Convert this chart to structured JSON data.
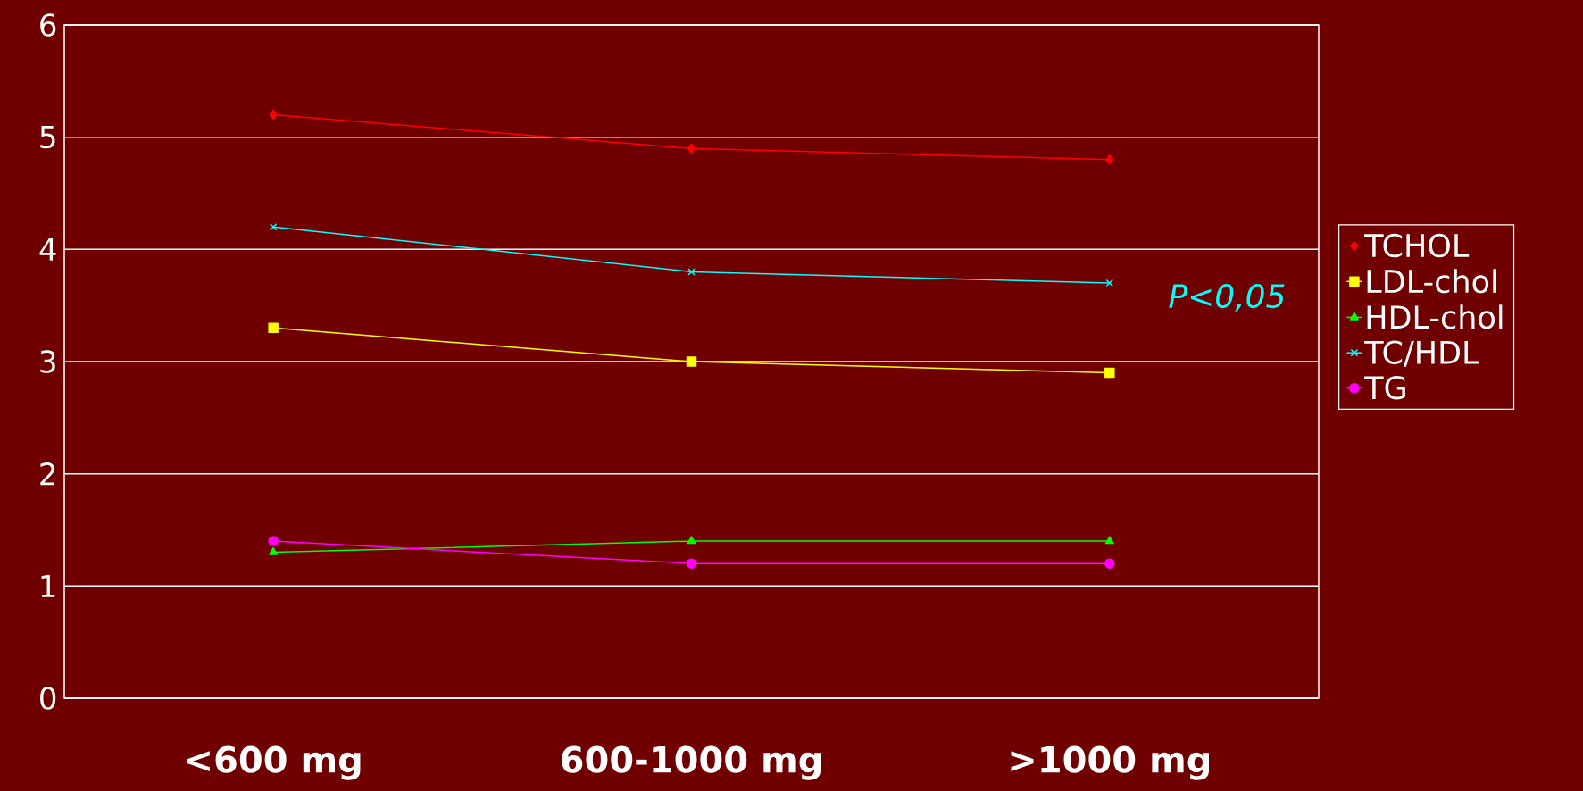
{
  "chart_data": {
    "type": "line",
    "categories": [
      "<600 mg",
      "600-1000 mg",
      ">1000 mg"
    ],
    "series": [
      {
        "name": "TCHOL",
        "color": "#ff0000",
        "marker": "diamond",
        "values": [
          5.2,
          4.9,
          4.8
        ]
      },
      {
        "name": "LDL-chol",
        "color": "#ffff00",
        "marker": "square",
        "values": [
          3.3,
          3.0,
          2.9
        ]
      },
      {
        "name": "HDL-chol",
        "color": "#00ff00",
        "marker": "triangle",
        "values": [
          1.3,
          1.4,
          1.4
        ]
      },
      {
        "name": "TC/HDL",
        "color": "#00ffff",
        "marker": "cross",
        "values": [
          4.2,
          3.8,
          3.7
        ]
      },
      {
        "name": "TG",
        "color": "#ff00ff",
        "marker": "circle",
        "values": [
          1.4,
          1.2,
          1.2
        ]
      }
    ],
    "ylim": [
      0,
      6
    ],
    "yticks": [
      0,
      1,
      2,
      3,
      4,
      5,
      6
    ],
    "grid": "y",
    "legend": "right",
    "line_style": "solid",
    "annotations": [
      "P<0,05"
    ]
  }
}
